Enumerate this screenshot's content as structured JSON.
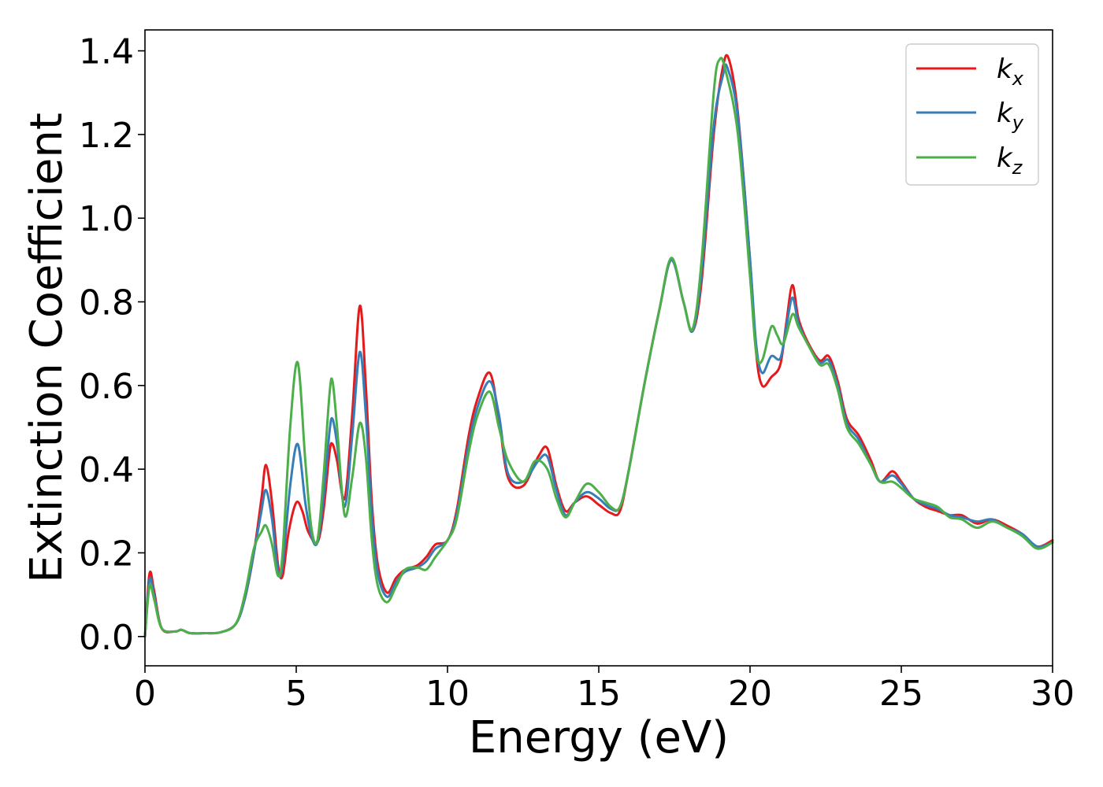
{
  "chart_data": {
    "type": "line",
    "xlabel": "Energy (eV)",
    "ylabel": "Extinction Coefficient",
    "xlim": [
      0,
      30
    ],
    "ylim": [
      -0.07,
      1.45
    ],
    "x_ticks": [
      0,
      5,
      10,
      15,
      20,
      25,
      30
    ],
    "x_tick_labels": [
      "0",
      "5",
      "10",
      "15",
      "20",
      "25",
      "30"
    ],
    "y_ticks": [
      0.0,
      0.2,
      0.4,
      0.6,
      0.8,
      1.0,
      1.2,
      1.4
    ],
    "y_tick_labels": [
      "0.0",
      "0.2",
      "0.4",
      "0.6",
      "0.8",
      "1.0",
      "1.2",
      "1.4"
    ],
    "grid": false,
    "legend_position": "top-right",
    "series": [
      {
        "name": "k_x",
        "label_main": "k",
        "label_sub": "x",
        "color": "#e41a1c",
        "points": [
          [
            0,
            0.0
          ],
          [
            0.15,
            0.15
          ],
          [
            0.3,
            0.11
          ],
          [
            0.55,
            0.02
          ],
          [
            1.0,
            0.012
          ],
          [
            1.2,
            0.016
          ],
          [
            1.5,
            0.008
          ],
          [
            2.0,
            0.008
          ],
          [
            2.5,
            0.01
          ],
          [
            3.0,
            0.03
          ],
          [
            3.3,
            0.09
          ],
          [
            3.6,
            0.2
          ],
          [
            3.85,
            0.33
          ],
          [
            4.0,
            0.41
          ],
          [
            4.2,
            0.32
          ],
          [
            4.4,
            0.17
          ],
          [
            4.55,
            0.145
          ],
          [
            4.75,
            0.25
          ],
          [
            5.0,
            0.32
          ],
          [
            5.2,
            0.3
          ],
          [
            5.4,
            0.25
          ],
          [
            5.7,
            0.225
          ],
          [
            5.9,
            0.3
          ],
          [
            6.1,
            0.44
          ],
          [
            6.2,
            0.46
          ],
          [
            6.35,
            0.42
          ],
          [
            6.6,
            0.33
          ],
          [
            6.85,
            0.53
          ],
          [
            7.1,
            0.79
          ],
          [
            7.3,
            0.6
          ],
          [
            7.5,
            0.32
          ],
          [
            7.7,
            0.17
          ],
          [
            8.0,
            0.105
          ],
          [
            8.3,
            0.14
          ],
          [
            8.6,
            0.16
          ],
          [
            9.0,
            0.17
          ],
          [
            9.3,
            0.19
          ],
          [
            9.6,
            0.22
          ],
          [
            10.0,
            0.23
          ],
          [
            10.3,
            0.3
          ],
          [
            10.7,
            0.48
          ],
          [
            11.0,
            0.57
          ],
          [
            11.4,
            0.63
          ],
          [
            11.7,
            0.52
          ],
          [
            12.0,
            0.38
          ],
          [
            12.5,
            0.36
          ],
          [
            13.0,
            0.43
          ],
          [
            13.3,
            0.45
          ],
          [
            13.6,
            0.36
          ],
          [
            13.9,
            0.3
          ],
          [
            14.2,
            0.32
          ],
          [
            14.6,
            0.335
          ],
          [
            15.0,
            0.315
          ],
          [
            15.4,
            0.295
          ],
          [
            15.7,
            0.3
          ],
          [
            16.0,
            0.4
          ],
          [
            16.5,
            0.6
          ],
          [
            17.0,
            0.78
          ],
          [
            17.4,
            0.9
          ],
          [
            17.8,
            0.8
          ],
          [
            18.1,
            0.73
          ],
          [
            18.4,
            0.85
          ],
          [
            18.8,
            1.2
          ],
          [
            19.1,
            1.36
          ],
          [
            19.3,
            1.38
          ],
          [
            19.6,
            1.25
          ],
          [
            20.0,
            0.9
          ],
          [
            20.2,
            0.68
          ],
          [
            20.4,
            0.6
          ],
          [
            20.7,
            0.62
          ],
          [
            21.0,
            0.65
          ],
          [
            21.2,
            0.75
          ],
          [
            21.4,
            0.84
          ],
          [
            21.6,
            0.76
          ],
          [
            21.9,
            0.705
          ],
          [
            22.3,
            0.66
          ],
          [
            22.6,
            0.67
          ],
          [
            22.9,
            0.61
          ],
          [
            23.2,
            0.52
          ],
          [
            23.6,
            0.48
          ],
          [
            24.0,
            0.42
          ],
          [
            24.3,
            0.37
          ],
          [
            24.7,
            0.395
          ],
          [
            25.0,
            0.37
          ],
          [
            25.4,
            0.33
          ],
          [
            25.8,
            0.31
          ],
          [
            26.2,
            0.3
          ],
          [
            26.6,
            0.29
          ],
          [
            27.0,
            0.29
          ],
          [
            27.5,
            0.27
          ],
          [
            28.0,
            0.28
          ],
          [
            28.5,
            0.265
          ],
          [
            29.0,
            0.245
          ],
          [
            29.5,
            0.215
          ],
          [
            30.0,
            0.23
          ]
        ]
      },
      {
        "name": "k_y",
        "label_main": "k",
        "label_sub": "y",
        "color": "#377eb8",
        "points": [
          [
            0,
            0.0
          ],
          [
            0.15,
            0.135
          ],
          [
            0.3,
            0.1
          ],
          [
            0.55,
            0.02
          ],
          [
            1.0,
            0.012
          ],
          [
            1.2,
            0.016
          ],
          [
            1.5,
            0.008
          ],
          [
            2.0,
            0.008
          ],
          [
            2.5,
            0.01
          ],
          [
            3.0,
            0.03
          ],
          [
            3.3,
            0.09
          ],
          [
            3.6,
            0.2
          ],
          [
            3.85,
            0.3
          ],
          [
            4.0,
            0.35
          ],
          [
            4.2,
            0.28
          ],
          [
            4.4,
            0.155
          ],
          [
            4.55,
            0.17
          ],
          [
            4.8,
            0.36
          ],
          [
            5.05,
            0.46
          ],
          [
            5.3,
            0.32
          ],
          [
            5.5,
            0.24
          ],
          [
            5.7,
            0.225
          ],
          [
            5.9,
            0.33
          ],
          [
            6.1,
            0.49
          ],
          [
            6.2,
            0.52
          ],
          [
            6.35,
            0.46
          ],
          [
            6.6,
            0.31
          ],
          [
            6.85,
            0.48
          ],
          [
            7.1,
            0.68
          ],
          [
            7.3,
            0.53
          ],
          [
            7.5,
            0.29
          ],
          [
            7.7,
            0.15
          ],
          [
            8.0,
            0.095
          ],
          [
            8.3,
            0.13
          ],
          [
            8.6,
            0.155
          ],
          [
            9.0,
            0.165
          ],
          [
            9.3,
            0.18
          ],
          [
            9.6,
            0.21
          ],
          [
            10.0,
            0.23
          ],
          [
            10.3,
            0.29
          ],
          [
            10.7,
            0.46
          ],
          [
            11.0,
            0.55
          ],
          [
            11.4,
            0.61
          ],
          [
            11.7,
            0.53
          ],
          [
            12.0,
            0.39
          ],
          [
            12.5,
            0.37
          ],
          [
            13.0,
            0.42
          ],
          [
            13.3,
            0.43
          ],
          [
            13.6,
            0.35
          ],
          [
            13.9,
            0.29
          ],
          [
            14.2,
            0.32
          ],
          [
            14.6,
            0.345
          ],
          [
            15.0,
            0.33
          ],
          [
            15.4,
            0.305
          ],
          [
            15.7,
            0.31
          ],
          [
            16.0,
            0.4
          ],
          [
            16.5,
            0.6
          ],
          [
            17.0,
            0.78
          ],
          [
            17.4,
            0.9
          ],
          [
            17.8,
            0.8
          ],
          [
            18.1,
            0.73
          ],
          [
            18.4,
            0.87
          ],
          [
            18.8,
            1.22
          ],
          [
            19.1,
            1.34
          ],
          [
            19.25,
            1.36
          ],
          [
            19.6,
            1.24
          ],
          [
            20.0,
            0.9
          ],
          [
            20.2,
            0.7
          ],
          [
            20.4,
            0.63
          ],
          [
            20.7,
            0.67
          ],
          [
            21.0,
            0.665
          ],
          [
            21.2,
            0.74
          ],
          [
            21.4,
            0.81
          ],
          [
            21.6,
            0.75
          ],
          [
            21.9,
            0.7
          ],
          [
            22.3,
            0.655
          ],
          [
            22.6,
            0.66
          ],
          [
            22.9,
            0.6
          ],
          [
            23.2,
            0.51
          ],
          [
            23.6,
            0.47
          ],
          [
            24.0,
            0.41
          ],
          [
            24.3,
            0.37
          ],
          [
            24.7,
            0.385
          ],
          [
            25.0,
            0.365
          ],
          [
            25.4,
            0.33
          ],
          [
            25.8,
            0.315
          ],
          [
            26.2,
            0.305
          ],
          [
            26.6,
            0.29
          ],
          [
            27.0,
            0.285
          ],
          [
            27.5,
            0.275
          ],
          [
            28.0,
            0.28
          ],
          [
            28.5,
            0.26
          ],
          [
            29.0,
            0.245
          ],
          [
            29.5,
            0.215
          ],
          [
            30.0,
            0.225
          ]
        ]
      },
      {
        "name": "k_z",
        "label_main": "k",
        "label_sub": "z",
        "color": "#4daf4a",
        "points": [
          [
            0,
            0.0
          ],
          [
            0.15,
            0.12
          ],
          [
            0.3,
            0.09
          ],
          [
            0.55,
            0.02
          ],
          [
            1.0,
            0.012
          ],
          [
            1.2,
            0.016
          ],
          [
            1.5,
            0.008
          ],
          [
            2.0,
            0.008
          ],
          [
            2.5,
            0.01
          ],
          [
            3.0,
            0.03
          ],
          [
            3.3,
            0.1
          ],
          [
            3.6,
            0.21
          ],
          [
            3.85,
            0.25
          ],
          [
            4.0,
            0.265
          ],
          [
            4.2,
            0.22
          ],
          [
            4.4,
            0.145
          ],
          [
            4.55,
            0.2
          ],
          [
            4.8,
            0.5
          ],
          [
            5.05,
            0.655
          ],
          [
            5.3,
            0.42
          ],
          [
            5.5,
            0.26
          ],
          [
            5.7,
            0.23
          ],
          [
            5.9,
            0.38
          ],
          [
            6.1,
            0.58
          ],
          [
            6.2,
            0.61
          ],
          [
            6.35,
            0.5
          ],
          [
            6.6,
            0.29
          ],
          [
            6.85,
            0.38
          ],
          [
            7.1,
            0.51
          ],
          [
            7.3,
            0.43
          ],
          [
            7.5,
            0.23
          ],
          [
            7.7,
            0.12
          ],
          [
            8.0,
            0.082
          ],
          [
            8.3,
            0.12
          ],
          [
            8.6,
            0.16
          ],
          [
            9.0,
            0.165
          ],
          [
            9.3,
            0.16
          ],
          [
            9.6,
            0.19
          ],
          [
            10.0,
            0.23
          ],
          [
            10.3,
            0.28
          ],
          [
            10.7,
            0.44
          ],
          [
            11.0,
            0.53
          ],
          [
            11.4,
            0.585
          ],
          [
            11.7,
            0.5
          ],
          [
            12.0,
            0.42
          ],
          [
            12.5,
            0.37
          ],
          [
            12.9,
            0.42
          ],
          [
            13.3,
            0.4
          ],
          [
            13.6,
            0.33
          ],
          [
            13.9,
            0.285
          ],
          [
            14.2,
            0.32
          ],
          [
            14.6,
            0.365
          ],
          [
            15.0,
            0.345
          ],
          [
            15.4,
            0.31
          ],
          [
            15.7,
            0.31
          ],
          [
            16.0,
            0.4
          ],
          [
            16.5,
            0.6
          ],
          [
            17.0,
            0.78
          ],
          [
            17.4,
            0.905
          ],
          [
            17.8,
            0.8
          ],
          [
            18.1,
            0.735
          ],
          [
            18.4,
            0.9
          ],
          [
            18.8,
            1.3
          ],
          [
            19.0,
            1.38
          ],
          [
            19.2,
            1.35
          ],
          [
            19.6,
            1.2
          ],
          [
            20.0,
            0.86
          ],
          [
            20.2,
            0.68
          ],
          [
            20.4,
            0.66
          ],
          [
            20.7,
            0.74
          ],
          [
            20.9,
            0.72
          ],
          [
            21.1,
            0.7
          ],
          [
            21.4,
            0.77
          ],
          [
            21.6,
            0.74
          ],
          [
            21.9,
            0.7
          ],
          [
            22.3,
            0.65
          ],
          [
            22.6,
            0.65
          ],
          [
            22.9,
            0.59
          ],
          [
            23.2,
            0.5
          ],
          [
            23.6,
            0.46
          ],
          [
            24.0,
            0.41
          ],
          [
            24.3,
            0.37
          ],
          [
            24.7,
            0.37
          ],
          [
            25.0,
            0.355
          ],
          [
            25.4,
            0.33
          ],
          [
            25.8,
            0.32
          ],
          [
            26.2,
            0.31
          ],
          [
            26.6,
            0.285
          ],
          [
            27.0,
            0.28
          ],
          [
            27.5,
            0.26
          ],
          [
            28.0,
            0.275
          ],
          [
            28.5,
            0.26
          ],
          [
            29.0,
            0.24
          ],
          [
            29.5,
            0.21
          ],
          [
            30.0,
            0.225
          ]
        ]
      }
    ]
  }
}
